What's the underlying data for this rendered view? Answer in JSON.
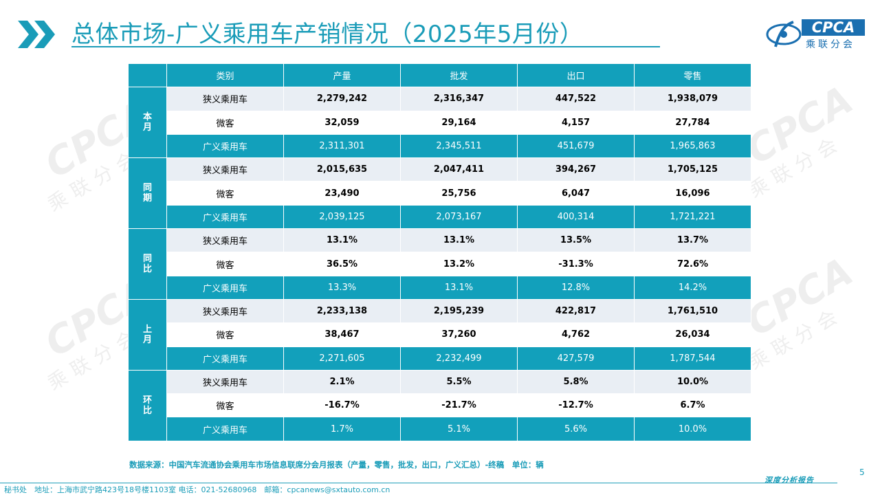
{
  "header": {
    "title": "总体市场-广义乘用车产销情况（2025年5月份）",
    "logo_text": "CPCA",
    "logo_cn": "乘联分会"
  },
  "watermark": {
    "text": "CPCA",
    "cn": "乘联分会"
  },
  "table": {
    "columns": [
      "类别",
      "产量",
      "批发",
      "出口",
      "零售"
    ],
    "groups": [
      {
        "label": "本月",
        "rows": [
          {
            "category": "狭义乘用车",
            "values": [
              "2,279,242",
              "2,316,347",
              "447,522",
              "1,938,079"
            ]
          },
          {
            "category": "微客",
            "values": [
              "32,059",
              "29,164",
              "4,157",
              "27,784"
            ]
          },
          {
            "category": "广义乘用车",
            "values": [
              "2,311,301",
              "2,345,511",
              "451,679",
              "1,965,863"
            ]
          }
        ]
      },
      {
        "label": "同期",
        "rows": [
          {
            "category": "狭义乘用车",
            "values": [
              "2,015,635",
              "2,047,411",
              "394,267",
              "1,705,125"
            ]
          },
          {
            "category": "微客",
            "values": [
              "23,490",
              "25,756",
              "6,047",
              "16,096"
            ]
          },
          {
            "category": "广义乘用车",
            "values": [
              "2,039,125",
              "2,073,167",
              "400,314",
              "1,721,221"
            ]
          }
        ]
      },
      {
        "label": "同比",
        "rows": [
          {
            "category": "狭义乘用车",
            "values": [
              "13.1%",
              "13.1%",
              "13.5%",
              "13.7%"
            ]
          },
          {
            "category": "微客",
            "values": [
              "36.5%",
              "13.2%",
              "-31.3%",
              "72.6%"
            ]
          },
          {
            "category": "广义乘用车",
            "values": [
              "13.3%",
              "13.1%",
              "12.8%",
              "14.2%"
            ]
          }
        ]
      },
      {
        "label": "上月",
        "rows": [
          {
            "category": "狭义乘用车",
            "values": [
              "2,233,138",
              "2,195,239",
              "422,817",
              "1,761,510"
            ]
          },
          {
            "category": "微客",
            "values": [
              "38,467",
              "37,260",
              "4,762",
              "26,034"
            ]
          },
          {
            "category": "广义乘用车",
            "values": [
              "2,271,605",
              "2,232,499",
              "427,579",
              "1,787,544"
            ]
          }
        ]
      },
      {
        "label": "环比",
        "rows": [
          {
            "category": "狭义乘用车",
            "values": [
              "2.1%",
              "5.5%",
              "5.8%",
              "10.0%"
            ]
          },
          {
            "category": "微客",
            "values": [
              "-16.7%",
              "-21.7%",
              "-12.7%",
              "6.7%"
            ]
          },
          {
            "category": "广义乘用车",
            "values": [
              "1.7%",
              "5.1%",
              "5.6%",
              "10.0%"
            ]
          }
        ]
      }
    ]
  },
  "source_note": "数据来源：中国汽车流通协会乘用车市场信息联席分会月报表（产量，零售，批发，出口，广义汇总）-终稿　单位：辆",
  "page_number": "5",
  "footer": {
    "report_label": "深度分析报告",
    "contact": "秘书处　地址：上海市武宁路423号18号楼1103室  电话：021-52680968　邮箱：cpcanews@sxtauto.com.cn"
  },
  "colors": {
    "accent": "#1a9cb8",
    "header_fill": "#12a0bb",
    "row_alt": "#e9eef4"
  }
}
